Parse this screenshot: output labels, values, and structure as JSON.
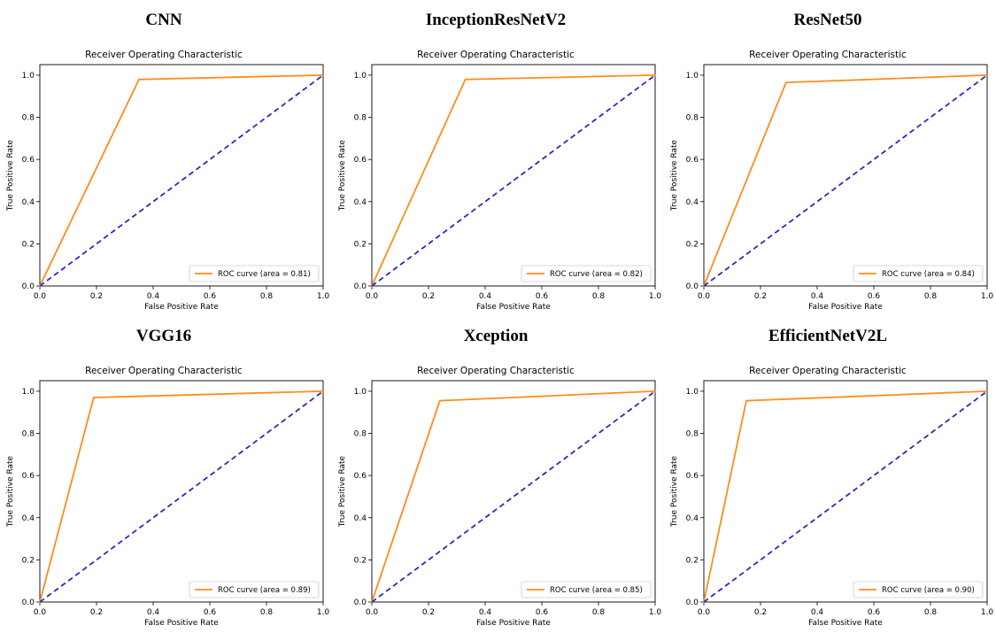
{
  "colors": {
    "roc": "#ff8c1a",
    "diagonal": "#2b2bb0",
    "axis": "#000000"
  },
  "chart_data": [
    {
      "type": "line",
      "model": "CNN",
      "title": "Receiver Operating Characteristic",
      "xlabel": "False Positive Rate",
      "ylabel": "True Positive Rate",
      "xlim": [
        0,
        1
      ],
      "ylim": [
        0,
        1.05
      ],
      "xticks": [
        "0.0",
        "0.2",
        "0.4",
        "0.6",
        "0.8",
        "1.0"
      ],
      "yticks": [
        "0.0",
        "0.2",
        "0.4",
        "0.6",
        "0.8",
        "1.0"
      ],
      "legend": "lower-right",
      "series": [
        {
          "name": "ROC curve (area = 0.81)",
          "x": [
            0,
            0.35,
            1
          ],
          "y": [
            0,
            0.98,
            1
          ]
        },
        {
          "name": "",
          "x": [
            0,
            1
          ],
          "y": [
            0,
            1
          ],
          "style": "dashed"
        }
      ]
    },
    {
      "type": "line",
      "model": "InceptionResNetV2",
      "title": "Receiver Operating Characteristic",
      "xlabel": "False Positive Rate",
      "ylabel": "True Positive Rate",
      "xlim": [
        0,
        1
      ],
      "ylim": [
        0,
        1.05
      ],
      "xticks": [
        "0.0",
        "0.2",
        "0.4",
        "0.6",
        "0.8",
        "1.0"
      ],
      "yticks": [
        "0.0",
        "0.2",
        "0.4",
        "0.6",
        "0.8",
        "1.0"
      ],
      "legend": "lower-right",
      "series": [
        {
          "name": "ROC curve (area = 0.82)",
          "x": [
            0,
            0.33,
            1
          ],
          "y": [
            0,
            0.98,
            1
          ]
        },
        {
          "name": "",
          "x": [
            0,
            1
          ],
          "y": [
            0,
            1
          ],
          "style": "dashed"
        }
      ]
    },
    {
      "type": "line",
      "model": "ResNet50",
      "title": "Receiver Operating Characteristic",
      "xlabel": "False Positive Rate",
      "ylabel": "True Positive Rate",
      "xlim": [
        0,
        1
      ],
      "ylim": [
        0,
        1.05
      ],
      "xticks": [
        "0.0",
        "0.2",
        "0.4",
        "0.6",
        "0.8",
        "1.0"
      ],
      "yticks": [
        "0.0",
        "0.2",
        "0.4",
        "0.6",
        "0.8",
        "1.0"
      ],
      "legend": "lower-right",
      "series": [
        {
          "name": "ROC curve (area = 0.84)",
          "x": [
            0,
            0.29,
            1
          ],
          "y": [
            0,
            0.965,
            1
          ]
        },
        {
          "name": "",
          "x": [
            0,
            1
          ],
          "y": [
            0,
            1
          ],
          "style": "dashed"
        }
      ]
    },
    {
      "type": "line",
      "model": "VGG16",
      "title": "Receiver Operating Characteristic",
      "xlabel": "False Positive Rate",
      "ylabel": "True Positive Rate",
      "xlim": [
        0,
        1
      ],
      "ylim": [
        0,
        1.05
      ],
      "xticks": [
        "0.0",
        "0.2",
        "0.4",
        "0.6",
        "0.8",
        "1.0"
      ],
      "yticks": [
        "0.0",
        "0.2",
        "0.4",
        "0.6",
        "0.8",
        "1.0"
      ],
      "legend": "lower-right",
      "series": [
        {
          "name": "ROC curve (area = 0.89)",
          "x": [
            0,
            0.19,
            1
          ],
          "y": [
            0,
            0.97,
            1
          ]
        },
        {
          "name": "",
          "x": [
            0,
            1
          ],
          "y": [
            0,
            1
          ],
          "style": "dashed"
        }
      ]
    },
    {
      "type": "line",
      "model": "Xception",
      "title": "Receiver Operating Characteristic",
      "xlabel": "False Positive Rate",
      "ylabel": "True Positive Rate",
      "xlim": [
        0,
        1
      ],
      "ylim": [
        0,
        1.05
      ],
      "xticks": [
        "0.0",
        "0.2",
        "0.4",
        "0.6",
        "0.8",
        "1.0"
      ],
      "yticks": [
        "0.0",
        "0.2",
        "0.4",
        "0.6",
        "0.8",
        "1.0"
      ],
      "legend": "lower-right",
      "series": [
        {
          "name": "ROC curve (area = 0.85)",
          "x": [
            0,
            0.24,
            1
          ],
          "y": [
            0,
            0.955,
            1
          ]
        },
        {
          "name": "",
          "x": [
            0,
            1
          ],
          "y": [
            0,
            1
          ],
          "style": "dashed"
        }
      ]
    },
    {
      "type": "line",
      "model": "EfficientNetV2L",
      "title": "Receiver Operating Characteristic",
      "xlabel": "False Positive Rate",
      "ylabel": "True Positive Rate",
      "xlim": [
        0,
        1
      ],
      "ylim": [
        0,
        1.05
      ],
      "xticks": [
        "0.0",
        "0.2",
        "0.4",
        "0.6",
        "0.8",
        "1.0"
      ],
      "yticks": [
        "0.0",
        "0.2",
        "0.4",
        "0.6",
        "0.8",
        "1.0"
      ],
      "legend": "lower-right",
      "series": [
        {
          "name": "ROC curve (area = 0.90)",
          "x": [
            0,
            0.15,
            1
          ],
          "y": [
            0,
            0.955,
            1
          ]
        },
        {
          "name": "",
          "x": [
            0,
            1
          ],
          "y": [
            0,
            1
          ],
          "style": "dashed"
        }
      ]
    }
  ]
}
